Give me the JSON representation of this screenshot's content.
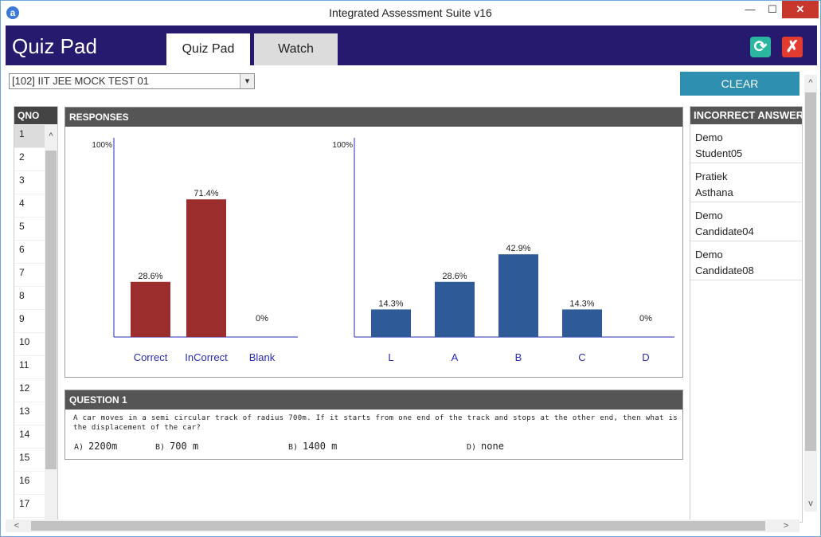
{
  "window": {
    "icon_letter": "a",
    "title": "Integrated Assessment Suite v16",
    "minimize_glyph": "—",
    "maximize_glyph": "☐",
    "close_glyph": "✕"
  },
  "header": {
    "app_name": "Quiz Pad",
    "tabs": [
      {
        "label": "Quiz Pad",
        "active": true
      },
      {
        "label": "Watch",
        "active": false
      }
    ],
    "refresh_icon": "⟳",
    "exit_icon": "✗"
  },
  "toolbar": {
    "test_select_value": "[102] IIT JEE MOCK TEST 01",
    "select_arrow": "▾",
    "clear_label": "CLEAR"
  },
  "qno": {
    "header": "QNO",
    "items": [
      "1",
      "2",
      "3",
      "4",
      "5",
      "6",
      "7",
      "8",
      "9",
      "10",
      "11",
      "12",
      "13",
      "14",
      "15",
      "16",
      "17"
    ],
    "active_index": 0,
    "scroll_up": "^"
  },
  "responses": {
    "header": "RESPONSES"
  },
  "chart_data": [
    {
      "type": "bar",
      "categories": [
        "Correct",
        "InCorrect",
        "Blank"
      ],
      "values": [
        28.6,
        71.4,
        0
      ],
      "value_labels": [
        "28.6%",
        "71.4%",
        "0%"
      ],
      "ylim": [
        0,
        100
      ],
      "y_top_label": "100%",
      "color": "#9b2d2d"
    },
    {
      "type": "bar",
      "categories": [
        "L",
        "A",
        "B",
        "C",
        "D"
      ],
      "values": [
        14.3,
        28.6,
        42.9,
        14.3,
        0
      ],
      "value_labels": [
        "14.3%",
        "28.6%",
        "42.9%",
        "14.3%",
        "0%"
      ],
      "ylim": [
        0,
        100
      ],
      "y_top_label": "100%",
      "color": "#2e5b97"
    }
  ],
  "question": {
    "header": "QUESTION 1",
    "text": "A car moves in a semi circular track of radius 700m. If it starts from one end of the track and stops at the other end, then what is the displacement of the car?",
    "options": [
      {
        "label": "A)",
        "value": "2200m"
      },
      {
        "label": "B)",
        "value": "700 m"
      },
      {
        "label": "B)",
        "value": "1400 m"
      },
      {
        "label": "D)",
        "value": "none"
      }
    ]
  },
  "incorrect": {
    "header": "INCORRECT ANSWER",
    "students": [
      {
        "first": "Demo",
        "last": "Student05"
      },
      {
        "first": "Pratiek",
        "last": "Asthana"
      },
      {
        "first": "Demo",
        "last": "Candidate04"
      },
      {
        "first": "Demo",
        "last": "Candidate08"
      }
    ]
  },
  "scrollbars": {
    "up": "^",
    "down": "v",
    "left": "<",
    "right": ">"
  }
}
